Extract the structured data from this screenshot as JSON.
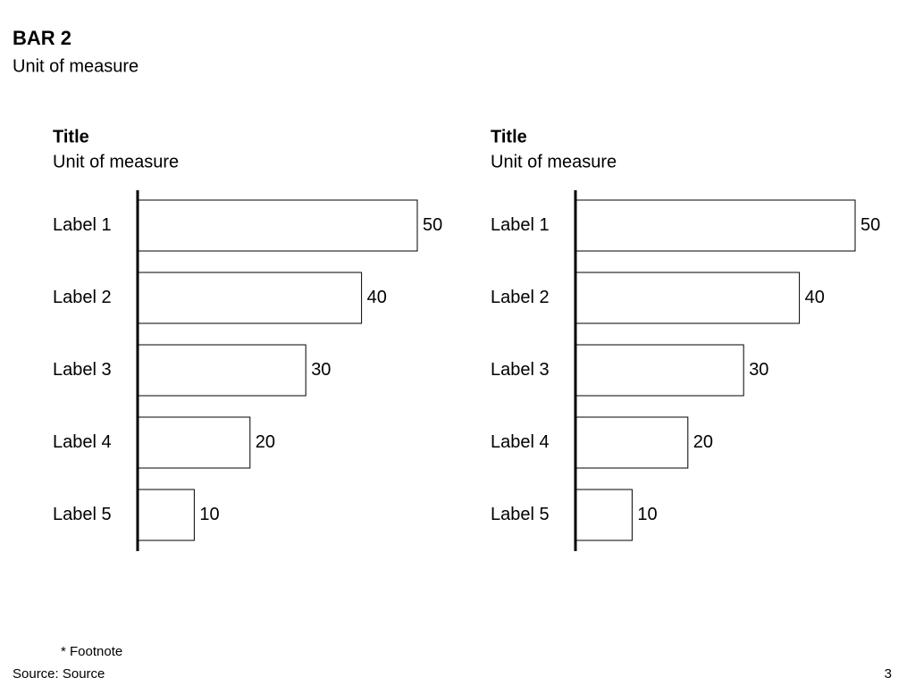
{
  "title": "BAR 2",
  "subtitle": "Unit of measure",
  "footnote": "* Footnote",
  "source": "Source: Source",
  "page_number": "3",
  "chart_data": [
    {
      "type": "bar",
      "orientation": "horizontal",
      "title": "Title",
      "subtitle": "Unit of measure",
      "categories": [
        "Label 1",
        "Label 2",
        "Label 3",
        "Label 4",
        "Label 5"
      ],
      "values": [
        50,
        40,
        30,
        20,
        10
      ],
      "color": "#ffffff"
    },
    {
      "type": "bar",
      "orientation": "horizontal",
      "title": "Title",
      "subtitle": "Unit of measure",
      "categories": [
        "Label 1",
        "Label 2",
        "Label 3",
        "Label 4",
        "Label 5"
      ],
      "values": [
        50,
        40,
        30,
        20,
        10
      ],
      "color": "#ffffff"
    }
  ]
}
